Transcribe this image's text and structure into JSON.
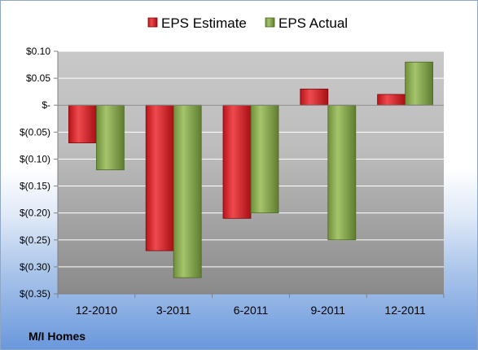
{
  "chart_data": {
    "type": "bar",
    "categories": [
      "12-2010",
      "3-2011",
      "6-2011",
      "9-2011",
      "12-2011"
    ],
    "series": [
      {
        "name": "EPS Estimate",
        "values": [
          -0.07,
          -0.27,
          -0.21,
          0.03,
          0.02
        ],
        "color": "#e0252b"
      },
      {
        "name": "EPS Actual",
        "values": [
          -0.12,
          -0.32,
          -0.2,
          -0.25,
          0.08
        ],
        "color": "#8db054"
      }
    ],
    "yticks": [
      "$0.10",
      "$0.05",
      "$-",
      "$(0.05)",
      "$(0.10)",
      "$(0.15)",
      "$(0.20)",
      "$(0.25)",
      "$(0.30)",
      "$(0.35)"
    ],
    "ylim": [
      -0.35,
      0.1
    ],
    "grid": true,
    "legend_position": "top"
  },
  "company": "M/I Homes",
  "colors": {
    "plot_background": "#c6c6c6",
    "gridline": "#ffffff",
    "estimate": "#e0252b",
    "actual": "#8db054"
  }
}
